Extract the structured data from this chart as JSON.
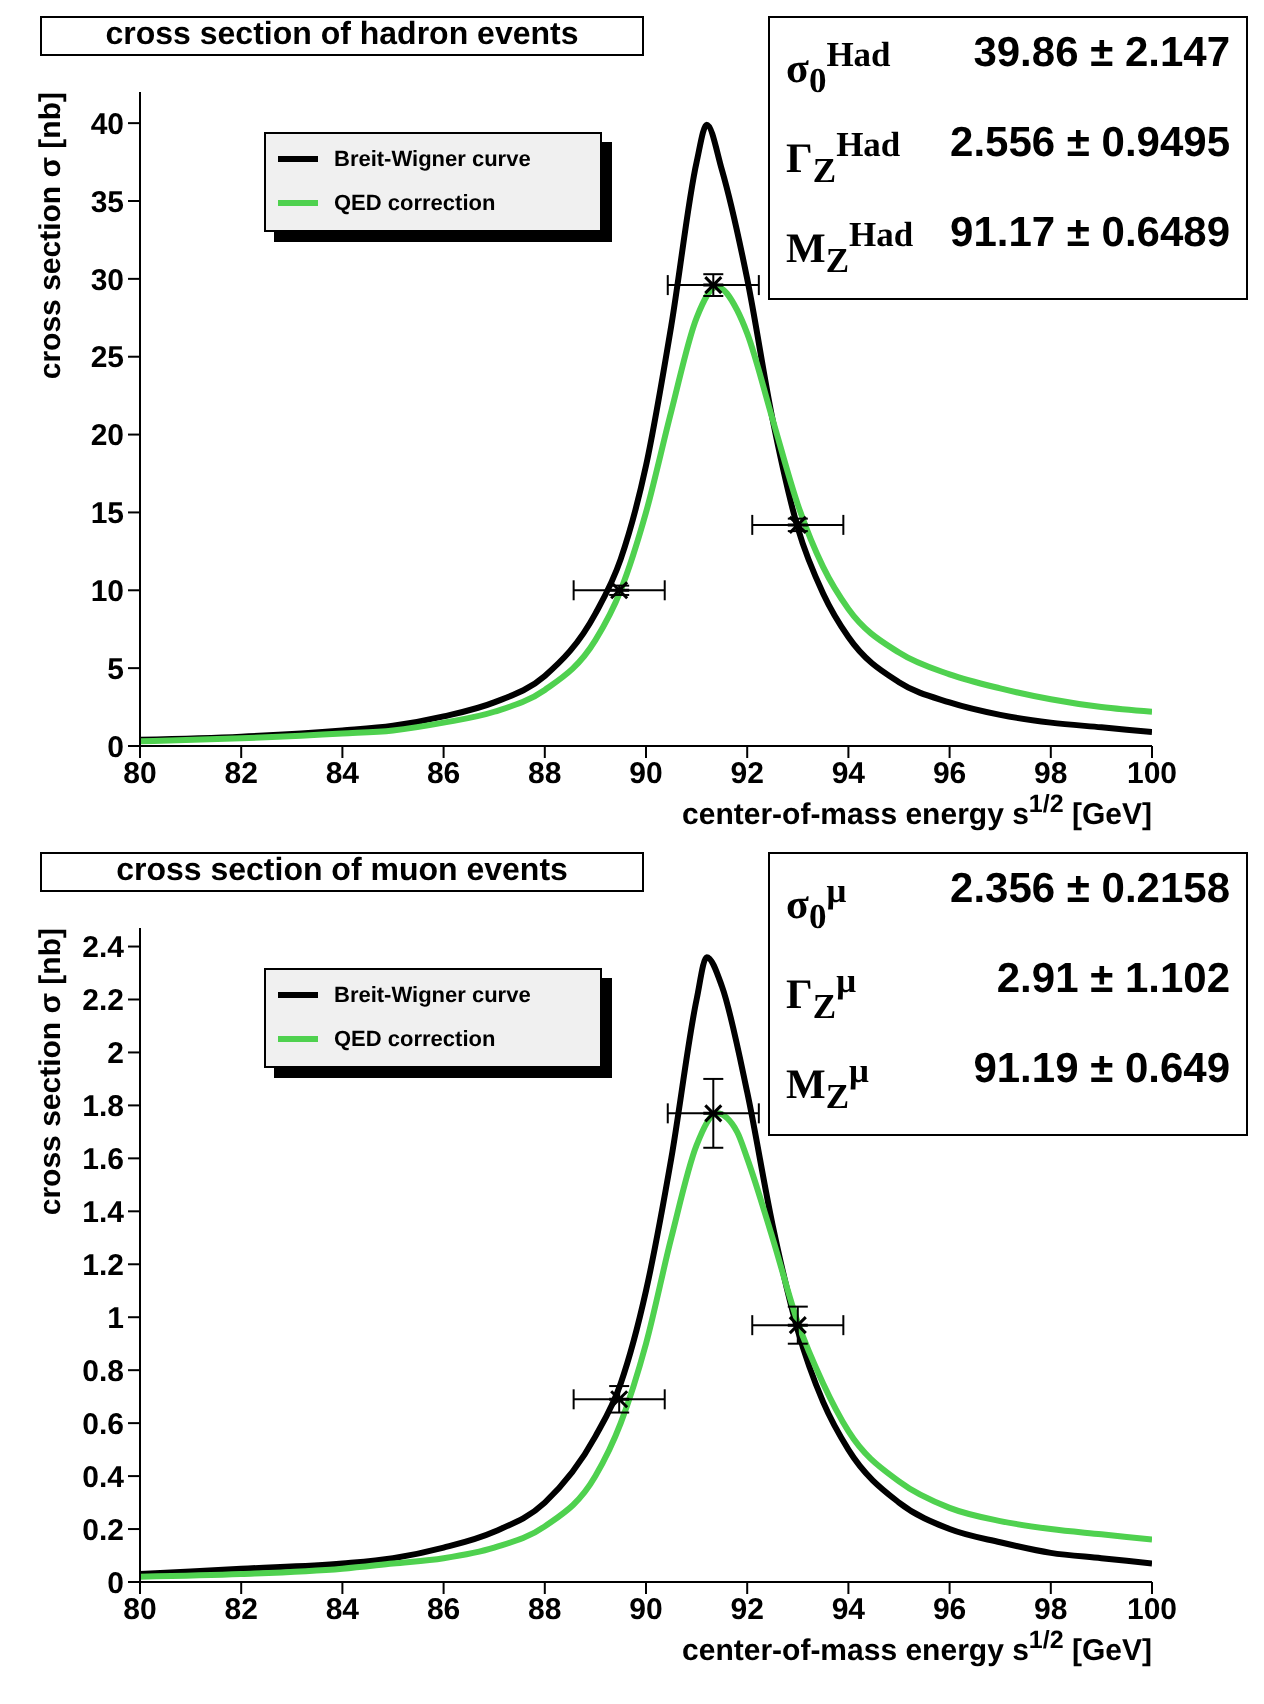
{
  "chart_data": [
    {
      "type": "line",
      "title": "cross section of hadron events",
      "xlabel": "center-of-mass energy s$^{1/2}$ [GeV]",
      "ylabel": "cross section σ [nb]",
      "annotations": [
        "σ$_{0}$$^{Had}$ 39.86 ± 2.147",
        "Γ$_{Z}$$^{Had}$ 2.556 ± 0.9495",
        "M$_{Z}$$^{Had}$ 91.17 ± 0.6489"
      ],
      "xlim": [
        80,
        100
      ],
      "xticks": [
        80,
        82,
        84,
        86,
        88,
        90,
        92,
        94,
        96,
        98,
        100
      ],
      "ylim": [
        0,
        42
      ],
      "yticks": [
        0,
        5,
        10,
        15,
        20,
        25,
        30,
        35,
        40
      ],
      "grid": false,
      "legend": "top left",
      "series": [
        {
          "name": "Breit-Wigner curve",
          "color": "#000000",
          "marker": "none",
          "x": [
            80,
            82,
            84,
            85,
            86,
            87,
            88,
            89,
            89.5,
            90,
            90.5,
            91,
            91.2,
            91.5,
            92,
            92.5,
            93,
            93.5,
            94,
            95,
            96,
            97,
            98,
            99,
            100
          ],
          "values": [
            0.4,
            0.6,
            1.0,
            1.3,
            1.9,
            2.8,
            4.5,
            8.5,
            12,
            18,
            27,
            37.5,
            39.9,
            37,
            30,
            21,
            14,
            9.8,
            7,
            4.1,
            2.8,
            2.0,
            1.5,
            1.2,
            0.9
          ]
        },
        {
          "name": "QED correction",
          "color": "#4fd14f",
          "marker": "none",
          "x": [
            80,
            82,
            84,
            85,
            86,
            87,
            88,
            89,
            89.5,
            90,
            90.5,
            91,
            91.4,
            91.8,
            92,
            92.5,
            93,
            93.5,
            94,
            95,
            96,
            97,
            98,
            99,
            100
          ],
          "values": [
            0.3,
            0.5,
            0.8,
            1.0,
            1.5,
            2.2,
            3.6,
            6.8,
            10,
            15,
            21.5,
            27.5,
            29.5,
            28,
            26.5,
            21,
            15.5,
            11.5,
            8.8,
            6.0,
            4.6,
            3.7,
            3.0,
            2.5,
            2.2
          ]
        },
        {
          "type": "scatter",
          "color": "#000000",
          "marker": "cross",
          "x": [
            89.47,
            91.33,
            93.0
          ],
          "values": [
            10.0,
            29.6,
            14.2
          ],
          "errors": [
            0.3,
            0.7,
            0.4
          ],
          "xerrors": [
            0.9,
            0.9,
            0.9
          ]
        }
      ]
    },
    {
      "type": "line",
      "title": "cross section of muon events",
      "xlabel": "center-of-mass energy s$^{1/2}$ [GeV]",
      "ylabel": "cross section σ [nb]",
      "annotations": [
        "σ$_{0}$$^{μ}$ 2.356 ± 0.2158",
        "Γ$_{Z}$$^{μ}$ 2.91 ± 1.102",
        "M$_{Z}$$^{μ}$ 91.19 ± 0.649"
      ],
      "xlim": [
        80,
        100
      ],
      "xticks": [
        80,
        82,
        84,
        86,
        88,
        90,
        92,
        94,
        96,
        98,
        100
      ],
      "ylim": [
        0,
        2.47
      ],
      "yticks": [
        0,
        0.2,
        0.4,
        0.6,
        0.8,
        1,
        1.2,
        1.4,
        1.6,
        1.8,
        2,
        2.2,
        2.4
      ],
      "grid": false,
      "legend": "top left",
      "series": [
        {
          "name": "Breit-Wigner curve",
          "color": "#000000",
          "marker": "none",
          "x": [
            80,
            82,
            84,
            85,
            86,
            87,
            88,
            89,
            89.5,
            90,
            90.5,
            91,
            91.2,
            91.5,
            92,
            92.5,
            93,
            93.5,
            94,
            95,
            96,
            97,
            98,
            99,
            100
          ],
          "values": [
            0.03,
            0.05,
            0.07,
            0.09,
            0.13,
            0.19,
            0.3,
            0.55,
            0.75,
            1.1,
            1.6,
            2.2,
            2.36,
            2.25,
            1.85,
            1.35,
            0.95,
            0.68,
            0.5,
            0.3,
            0.2,
            0.15,
            0.11,
            0.09,
            0.07
          ]
        },
        {
          "name": "QED correction",
          "color": "#4fd14f",
          "marker": "none",
          "x": [
            80,
            82,
            84,
            85,
            86,
            87,
            88,
            89,
            89.5,
            90,
            90.5,
            91,
            91.4,
            91.8,
            92,
            92.5,
            93,
            93.5,
            94,
            95,
            96,
            97,
            98,
            99,
            100
          ],
          "values": [
            0.02,
            0.03,
            0.05,
            0.07,
            0.09,
            0.13,
            0.21,
            0.4,
            0.6,
            0.9,
            1.3,
            1.65,
            1.77,
            1.7,
            1.6,
            1.3,
            0.98,
            0.75,
            0.57,
            0.38,
            0.28,
            0.23,
            0.2,
            0.18,
            0.16
          ]
        },
        {
          "type": "scatter",
          "color": "#000000",
          "marker": "cross",
          "x": [
            89.47,
            91.33,
            93.0
          ],
          "values": [
            0.69,
            1.77,
            0.97
          ],
          "errors": [
            0.05,
            0.13,
            0.07
          ],
          "xerrors": [
            0.9,
            0.9,
            0.9
          ]
        }
      ]
    }
  ]
}
